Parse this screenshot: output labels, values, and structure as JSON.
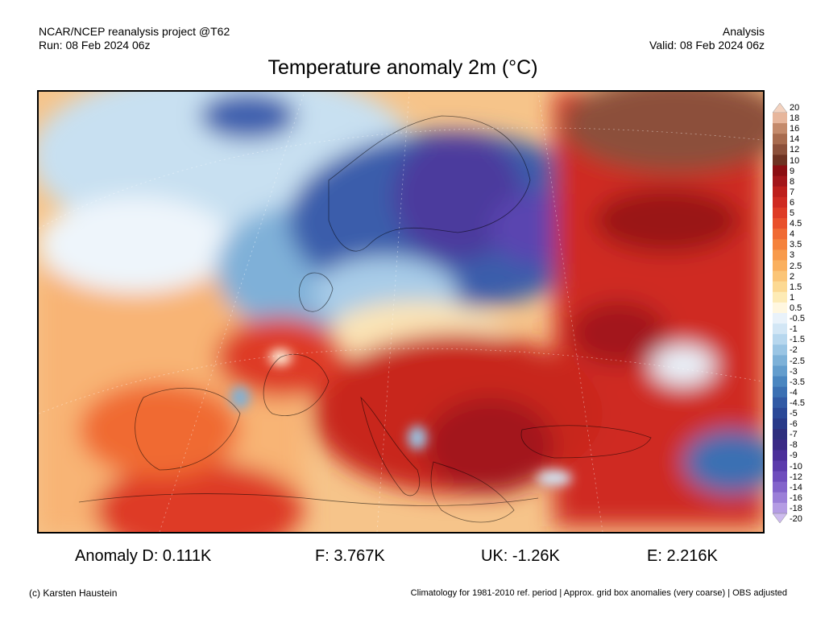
{
  "header": {
    "project": "NCAR/NCEP reanalysis project @T62",
    "run": "Run: 08 Feb 2024 06z",
    "analysis": "Analysis",
    "valid": "Valid: 08 Feb 2024 06z"
  },
  "title": "Temperature anomaly 2m (°C)",
  "colorbar": {
    "labels": [
      "20",
      "18",
      "16",
      "14",
      "12",
      "10",
      "9",
      "8",
      "7",
      "6",
      "5",
      "4.5",
      "4",
      "3.5",
      "3",
      "2.5",
      "2",
      "1.5",
      "1",
      "0.5",
      "-0.5",
      "-1",
      "-1.5",
      "-2",
      "-2.5",
      "-3",
      "-3.5",
      "-4",
      "-4.5",
      "-5",
      "-6",
      "-7",
      "-8",
      "-9",
      "-10",
      "-12",
      "-14",
      "-16",
      "-18",
      "-20"
    ],
    "colors": [
      "#f3d2bf",
      "#e7b69c",
      "#c48a6b",
      "#a86b4e",
      "#8c503a",
      "#6e3222",
      "#8b0e12",
      "#a3161a",
      "#bd1f1c",
      "#cf2a21",
      "#de3b25",
      "#e9502b",
      "#f06a33",
      "#f5823c",
      "#f89a4b",
      "#fab05f",
      "#fbc577",
      "#fcd993",
      "#fdebb6",
      "#fff7e0",
      "#e9f2fa",
      "#d2e6f5",
      "#b7d7ee",
      "#9ac5e4",
      "#7db1d8",
      "#639dcd",
      "#4a86c0",
      "#3b70b3",
      "#315aa5",
      "#2a4897",
      "#283a89",
      "#2e2f7e",
      "#3a2a86",
      "#4b2f9a",
      "#5b3bac",
      "#6e4dbd",
      "#8364cb",
      "#9b7fd8",
      "#b49ce3",
      "#cdbbee"
    ]
  },
  "stats": {
    "d": "Anomaly D: 0.111K",
    "f": "F: 3.767K",
    "uk": "UK: -1.26K",
    "e": "E: 2.216K"
  },
  "footer": {
    "credit": "(c) Karsten Haustein",
    "note": "Climatology for 1981-2010 ref. period | Approx. grid box anomalies (very coarse) | OBS adjusted"
  }
}
